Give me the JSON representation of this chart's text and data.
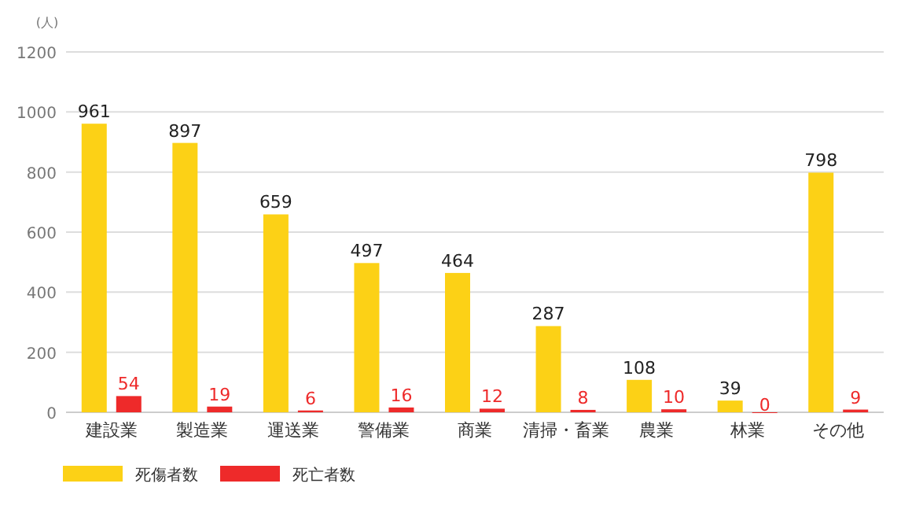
{
  "chart_data": {
    "type": "bar",
    "ylabel": "(人)",
    "categories": [
      "建設業",
      "製造業",
      "運送業",
      "警備業",
      "商業",
      "清掃・畜業",
      "農業",
      "林業",
      "その他"
    ],
    "series": [
      {
        "name": "死傷者数",
        "color": "#fcd116",
        "values": [
          961,
          897,
          659,
          497,
          464,
          287,
          108,
          39,
          798
        ]
      },
      {
        "name": "死亡者数",
        "color": "#ee2a2a",
        "values": [
          54,
          19,
          6,
          16,
          12,
          8,
          10,
          0,
          9
        ]
      }
    ],
    "ylim": [
      0,
      1200
    ],
    "yticks": [
      0,
      200,
      400,
      600,
      800,
      1000,
      1200
    ],
    "grid": "y",
    "legend": "bottom left",
    "data_labels": true
  }
}
